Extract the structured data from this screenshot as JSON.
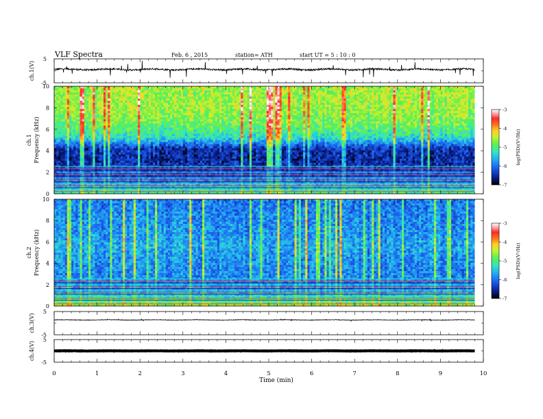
{
  "header": {
    "title": "VLF Spectra",
    "date": "Feb. 6 , 2015",
    "station": "station= ATH",
    "start": "start UT = 5 : 10 : 0"
  },
  "colors": {
    "palette": [
      "#000000",
      "#0a1f8c",
      "#1d5cf0",
      "#22b0f0",
      "#34e6c0",
      "#5cf050",
      "#c8f030",
      "#ffd020",
      "#ff7020",
      "#ff2a2a",
      "#ffb0b0",
      "#ffffff"
    ]
  },
  "chart_data": [
    {
      "type": "line",
      "panel": "ch1-waveform",
      "ylabel": "ch.1(V)",
      "yticks": [
        "5",
        "-5"
      ],
      "ylim": [
        -5,
        5
      ],
      "xlim": [
        0,
        10
      ],
      "x_end": 9.8,
      "baseline": 0.6,
      "noise": 0.35,
      "spike_amp": 1.8
    },
    {
      "type": "heatmap",
      "panel": "ch1-spectrogram",
      "ylabel_top": "ch.1",
      "ylabel": "Frequency (kHz)",
      "yticks": [
        "0",
        "2",
        "4",
        "6",
        "8",
        "10"
      ],
      "ylim": [
        0,
        10
      ],
      "xlim": [
        0,
        10
      ],
      "x_end": 9.8,
      "colorbar": {
        "label": "log(PSD)(V²/Hz)",
        "ticks": [
          "-3",
          "-4",
          "-5",
          "-6",
          "-7"
        ],
        "range": [
          -7,
          -3
        ]
      },
      "profile_kHz": [
        0,
        1.5,
        3,
        4.2,
        5.2,
        6.5,
        8,
        10
      ],
      "profile_level": [
        0.5,
        0.22,
        0.12,
        0.14,
        0.42,
        0.55,
        0.6,
        0.6
      ]
    },
    {
      "type": "heatmap",
      "panel": "ch2-spectrogram",
      "ylabel_top": "ch.2",
      "ylabel": "Frequency (kHz)",
      "yticks": [
        "0",
        "2",
        "4",
        "6",
        "8",
        "10"
      ],
      "ylim": [
        0,
        10
      ],
      "xlim": [
        0,
        10
      ],
      "x_end": 9.8,
      "colorbar": {
        "label": "log(PSD)(V²/Hz)",
        "ticks": [
          "-3",
          "-4",
          "-5",
          "-6",
          "-7"
        ],
        "range": [
          -7,
          -3
        ]
      },
      "profile_kHz": [
        0,
        1.5,
        3,
        4.5,
        5.5,
        7,
        10
      ],
      "profile_level": [
        0.6,
        0.3,
        0.28,
        0.3,
        0.33,
        0.3,
        0.26
      ]
    },
    {
      "type": "line",
      "panel": "ch3-waveform",
      "ylabel": "ch.3(V)",
      "yticks": [
        "5",
        "-5"
      ],
      "ylim": [
        -5,
        5
      ],
      "xlim": [
        0,
        10
      ],
      "x_end": 9.8,
      "baseline": 1.4,
      "noise": 0.12,
      "spike_amp": 0.3
    },
    {
      "type": "line",
      "panel": "ch4-waveform",
      "ylabel": "ch.4(V)",
      "yticks": [
        "5",
        "-5"
      ],
      "ylim": [
        -5,
        5
      ],
      "xlim": [
        0,
        10
      ],
      "x_end": 9.8,
      "baseline": 0.0,
      "noise": 0.05,
      "spike_amp": 0.05,
      "thick": true
    }
  ],
  "xaxis": {
    "label": "Time (min)",
    "ticks": [
      "0",
      "1",
      "2",
      "3",
      "4",
      "5",
      "6",
      "7",
      "8",
      "9",
      "10"
    ],
    "range": [
      0,
      10
    ]
  }
}
